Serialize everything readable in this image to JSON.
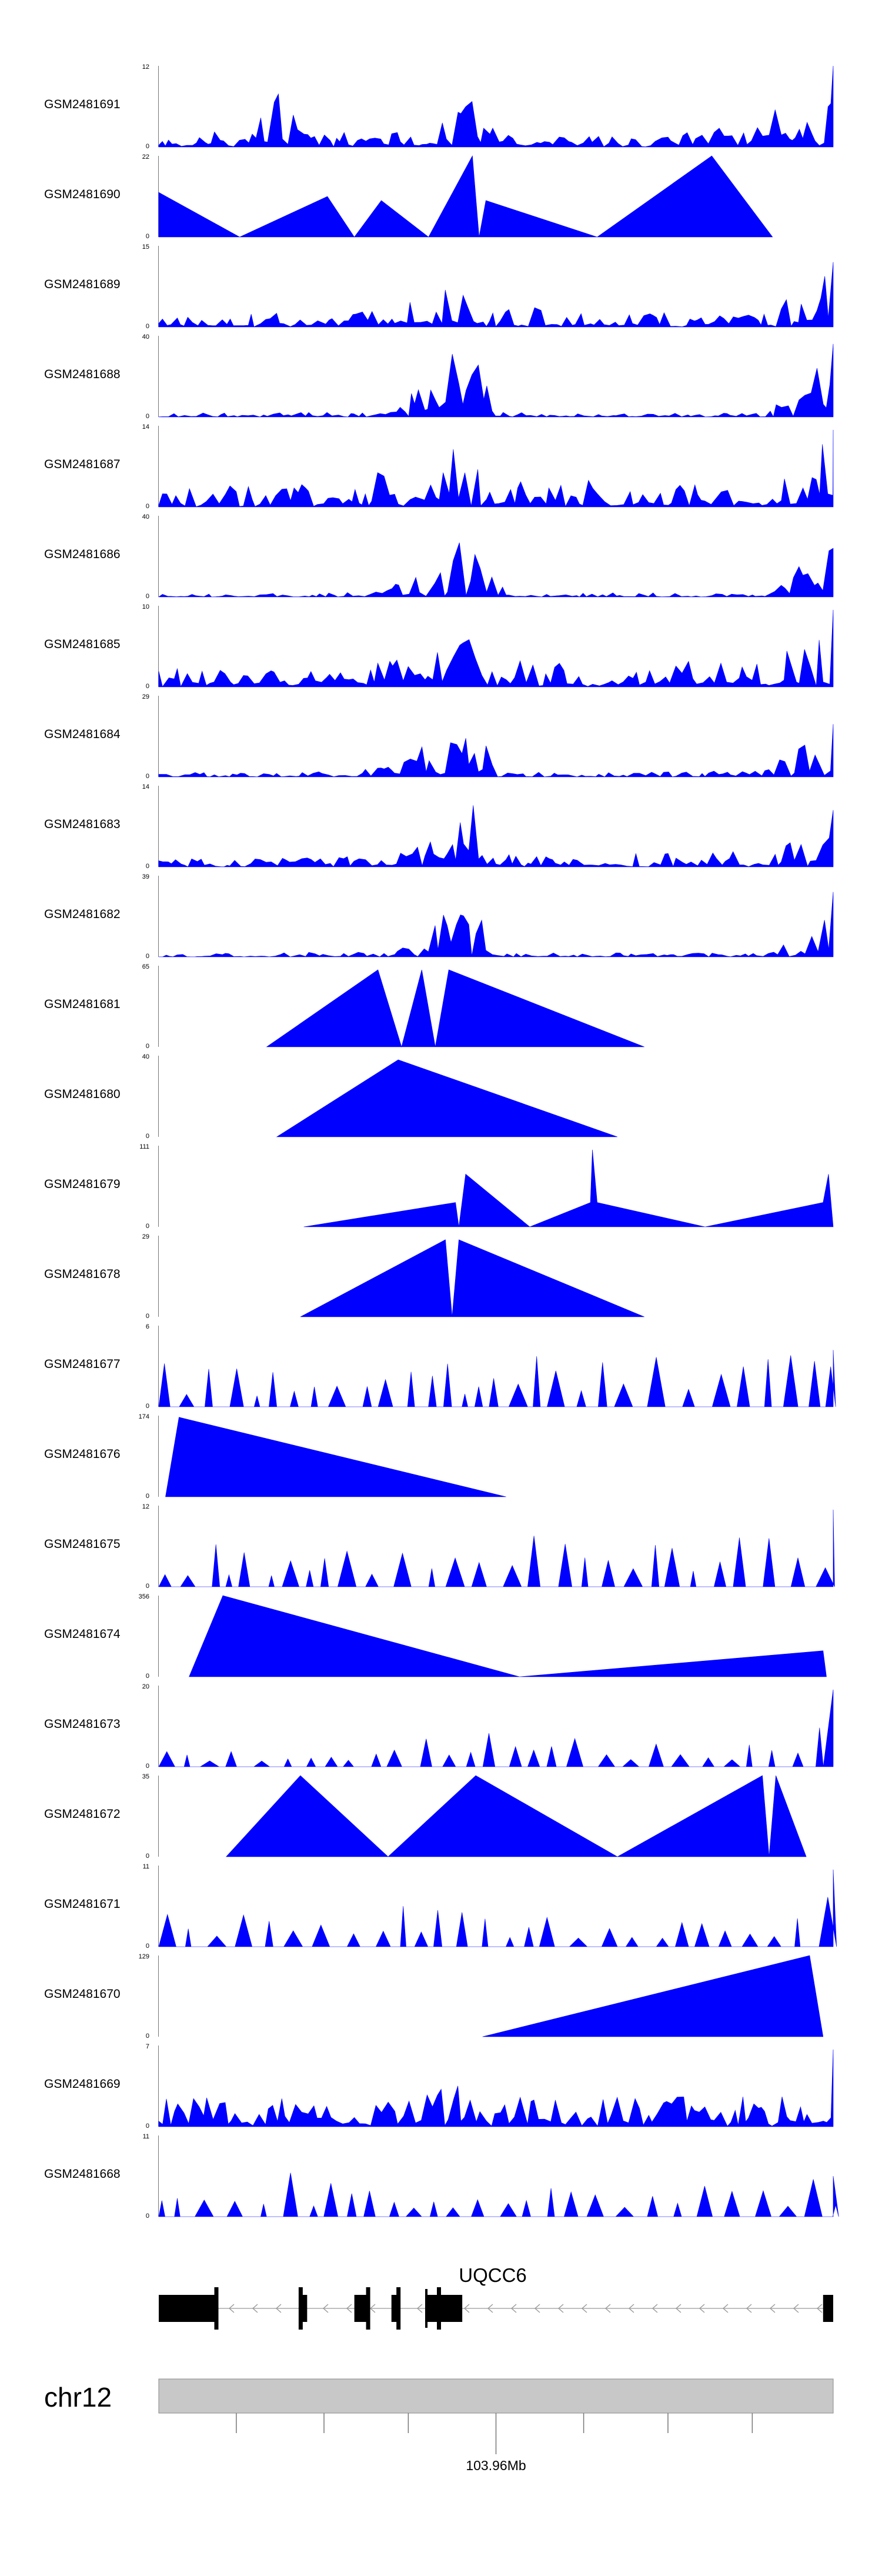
{
  "chart_data": {
    "type": "area",
    "title": "",
    "series_color": "#0000ff",
    "gene": {
      "name": "UQCC6",
      "strand": "-",
      "exons": [
        [
          0.0,
          0.085
        ],
        [
          0.21,
          0.22
        ],
        [
          0.29,
          0.31
        ],
        [
          0.345,
          0.355
        ],
        [
          0.395,
          0.397
        ],
        [
          0.395,
          0.45
        ],
        [
          0.985,
          1.0
        ]
      ]
    },
    "axis": {
      "chromosome": "chr12",
      "tick_label": "103.96Mb",
      "tick_positions": [
        0.115,
        0.245,
        0.37,
        0.5,
        0.63,
        0.755,
        0.88
      ],
      "labeled_tick_index": 3
    },
    "tracks": [
      {
        "name": "GSM2481691",
        "ymax": 12,
        "ymin": 0,
        "kind": "dense",
        "seed": 11,
        "profile": [
          [
            0.0,
            0.1
          ],
          [
            0.12,
            0.25
          ],
          [
            0.13,
            0.55
          ],
          [
            0.17,
            0.75
          ],
          [
            0.22,
            0.25
          ],
          [
            0.28,
            0.2
          ],
          [
            0.33,
            0.15
          ],
          [
            0.4,
            0.25
          ],
          [
            0.45,
            0.8
          ],
          [
            0.462,
            1.0
          ],
          [
            0.47,
            0.3
          ],
          [
            0.55,
            0.15
          ],
          [
            0.7,
            0.15
          ],
          [
            0.84,
            0.25
          ],
          [
            0.9,
            0.45
          ],
          [
            0.96,
            0.7
          ],
          [
            0.995,
            1.0
          ]
        ]
      },
      {
        "name": "GSM2481690",
        "ymax": 22,
        "ymin": 0,
        "kind": "poly",
        "points": [
          [
            0.0,
            0
          ],
          [
            0.0,
            0.55
          ],
          [
            0.12,
            0
          ],
          [
            0.25,
            0.5
          ],
          [
            0.29,
            0
          ],
          [
            0.33,
            0.45
          ],
          [
            0.4,
            0
          ],
          [
            0.465,
            1.0
          ],
          [
            0.475,
            0
          ],
          [
            0.485,
            0.45
          ],
          [
            0.65,
            0
          ],
          [
            0.82,
            1.0
          ],
          [
            0.91,
            0
          ]
        ]
      },
      {
        "name": "GSM2481689",
        "ymax": 15,
        "ymin": 0,
        "kind": "dense",
        "seed": 23,
        "profile": [
          [
            0.0,
            0.15
          ],
          [
            0.3,
            0.2
          ],
          [
            0.36,
            0.45
          ],
          [
            0.42,
            0.45
          ],
          [
            0.46,
            0.55
          ],
          [
            0.5,
            0.3
          ],
          [
            0.6,
            0.2
          ],
          [
            0.9,
            0.2
          ],
          [
            0.97,
            0.6
          ],
          [
            0.99,
            1.0
          ],
          [
            1.0,
            0.8
          ]
        ]
      },
      {
        "name": "GSM2481688",
        "ymax": 40,
        "ymin": 0,
        "kind": "dense",
        "seed": 31,
        "profile": [
          [
            0.0,
            0.05
          ],
          [
            0.3,
            0.06
          ],
          [
            0.36,
            0.25
          ],
          [
            0.4,
            0.45
          ],
          [
            0.43,
            0.75
          ],
          [
            0.465,
            0.95
          ],
          [
            0.49,
            0.65
          ],
          [
            0.5,
            0.1
          ],
          [
            0.55,
            0.05
          ],
          [
            0.9,
            0.05
          ],
          [
            0.95,
            0.4
          ],
          [
            0.98,
            0.8
          ],
          [
            1.0,
            0.9
          ]
        ]
      },
      {
        "name": "GSM2481687",
        "ymax": 14,
        "ymin": 0,
        "kind": "dense",
        "seed": 47,
        "profile": [
          [
            0.0,
            0.25
          ],
          [
            0.28,
            0.3
          ],
          [
            0.33,
            0.45
          ],
          [
            0.4,
            0.35
          ],
          [
            0.44,
            0.95
          ],
          [
            0.47,
            0.7
          ],
          [
            0.5,
            0.4
          ],
          [
            0.55,
            0.3
          ],
          [
            0.7,
            0.35
          ],
          [
            0.8,
            0.3
          ],
          [
            0.92,
            0.35
          ],
          [
            0.97,
            0.7
          ],
          [
            1.0,
            0.95
          ]
        ]
      },
      {
        "name": "GSM2481686",
        "ymax": 40,
        "ymin": 0,
        "kind": "dense",
        "seed": 53,
        "profile": [
          [
            0.0,
            0.05
          ],
          [
            0.3,
            0.06
          ],
          [
            0.38,
            0.25
          ],
          [
            0.43,
            0.55
          ],
          [
            0.465,
            0.95
          ],
          [
            0.49,
            0.4
          ],
          [
            0.52,
            0.06
          ],
          [
            0.9,
            0.05
          ],
          [
            0.96,
            0.6
          ],
          [
            0.99,
            0.95
          ],
          [
            1.0,
            0.6
          ]
        ]
      },
      {
        "name": "GSM2481685",
        "ymax": 10,
        "ymin": 0,
        "kind": "dense",
        "seed": 61,
        "profile": [
          [
            0.0,
            0.25
          ],
          [
            0.25,
            0.2
          ],
          [
            0.33,
            0.35
          ],
          [
            0.4,
            0.55
          ],
          [
            0.45,
            0.85
          ],
          [
            0.48,
            0.7
          ],
          [
            0.52,
            0.35
          ],
          [
            0.6,
            0.3
          ],
          [
            0.7,
            0.3
          ],
          [
            0.9,
            0.35
          ],
          [
            0.97,
            0.6
          ],
          [
            1.0,
            0.95
          ]
        ]
      },
      {
        "name": "GSM2481684",
        "ymax": 29,
        "ymin": 0,
        "kind": "dense",
        "seed": 71,
        "profile": [
          [
            0.0,
            0.05
          ],
          [
            0.3,
            0.08
          ],
          [
            0.38,
            0.3
          ],
          [
            0.42,
            0.7
          ],
          [
            0.46,
            0.85
          ],
          [
            0.49,
            0.6
          ],
          [
            0.5,
            0.1
          ],
          [
            0.55,
            0.06
          ],
          [
            0.9,
            0.08
          ],
          [
            0.95,
            0.45
          ],
          [
            0.98,
            0.85
          ],
          [
            1.0,
            0.65
          ]
        ]
      },
      {
        "name": "GSM2481683",
        "ymax": 14,
        "ymin": 0,
        "kind": "dense",
        "seed": 83,
        "profile": [
          [
            0.0,
            0.1
          ],
          [
            0.3,
            0.15
          ],
          [
            0.36,
            0.25
          ],
          [
            0.42,
            0.45
          ],
          [
            0.45,
            0.95
          ],
          [
            0.48,
            0.6
          ],
          [
            0.5,
            0.2
          ],
          [
            0.6,
            0.15
          ],
          [
            0.9,
            0.2
          ],
          [
            0.97,
            0.5
          ],
          [
            1.0,
            0.7
          ]
        ]
      },
      {
        "name": "GSM2481682",
        "ymax": 39,
        "ymin": 0,
        "kind": "dense",
        "seed": 97,
        "profile": [
          [
            0.0,
            0.05
          ],
          [
            0.35,
            0.06
          ],
          [
            0.4,
            0.3
          ],
          [
            0.43,
            0.7
          ],
          [
            0.46,
            0.55
          ],
          [
            0.49,
            0.4
          ],
          [
            0.5,
            0.05
          ],
          [
            0.9,
            0.05
          ],
          [
            0.96,
            0.3
          ],
          [
            0.985,
            0.95
          ],
          [
            1.0,
            0.8
          ]
        ]
      },
      {
        "name": "GSM2481681",
        "ymax": 65,
        "ymin": 0,
        "kind": "poly",
        "points": [
          [
            0.16,
            0
          ],
          [
            0.325,
            0.95
          ],
          [
            0.36,
            0
          ],
          [
            0.39,
            0.95
          ],
          [
            0.41,
            0
          ],
          [
            0.43,
            0.95
          ],
          [
            0.72,
            0
          ]
        ]
      },
      {
        "name": "GSM2481680",
        "ymax": 40,
        "ymin": 0,
        "kind": "poly",
        "points": [
          [
            0.175,
            0
          ],
          [
            0.355,
            0.95
          ],
          [
            0.68,
            0
          ]
        ]
      },
      {
        "name": "GSM2481679",
        "ymax": 111,
        "ymin": 0,
        "kind": "poly",
        "points": [
          [
            0.215,
            0
          ],
          [
            0.44,
            0.3
          ],
          [
            0.445,
            0
          ],
          [
            0.455,
            0.65
          ],
          [
            0.55,
            0
          ],
          [
            0.64,
            0.3
          ],
          [
            0.643,
            0.95
          ],
          [
            0.65,
            0.3
          ],
          [
            0.81,
            0
          ],
          [
            0.985,
            0.3
          ],
          [
            0.993,
            0.65
          ],
          [
            1.0,
            0
          ]
        ]
      },
      {
        "name": "GSM2481678",
        "ymax": 29,
        "ymin": 0,
        "kind": "poly",
        "points": [
          [
            0.21,
            0
          ],
          [
            0.425,
            0.95
          ],
          [
            0.435,
            0
          ],
          [
            0.445,
            0.95
          ],
          [
            0.72,
            0
          ]
        ]
      },
      {
        "name": "GSM2481677",
        "ymax": 6,
        "ymin": 0,
        "kind": "sparse",
        "seed": 101,
        "profile": [
          [
            0.0,
            0.55
          ],
          [
            0.25,
            0.5
          ],
          [
            0.4,
            0.55
          ],
          [
            0.55,
            0.7
          ],
          [
            0.65,
            0.75
          ],
          [
            0.85,
            0.6
          ],
          [
            0.95,
            0.65
          ],
          [
            1.0,
            0.7
          ]
        ]
      },
      {
        "name": "GSM2481676",
        "ymax": 174,
        "ymin": 0,
        "kind": "poly",
        "points": [
          [
            0.01,
            0
          ],
          [
            0.03,
            0.98
          ],
          [
            0.515,
            0
          ]
        ]
      },
      {
        "name": "GSM2481675",
        "ymax": 12,
        "ymin": 0,
        "kind": "sparse",
        "seed": 113,
        "profile": [
          [
            0.0,
            0.5
          ],
          [
            0.15,
            0.55
          ],
          [
            0.4,
            0.45
          ],
          [
            0.46,
            0.8
          ],
          [
            0.6,
            0.7
          ],
          [
            0.7,
            0.85
          ],
          [
            0.9,
            0.6
          ],
          [
            0.96,
            0.8
          ],
          [
            1.0,
            0.95
          ]
        ]
      },
      {
        "name": "GSM2481674",
        "ymax": 356,
        "ymin": 0,
        "kind": "poly",
        "points": [
          [
            0.045,
            0
          ],
          [
            0.095,
            1.0
          ],
          [
            0.535,
            0
          ],
          [
            0.985,
            0.32
          ],
          [
            0.99,
            0
          ]
        ]
      },
      {
        "name": "GSM2481673",
        "ymax": 20,
        "ymin": 0,
        "kind": "sparse",
        "seed": 127,
        "profile": [
          [
            0.0,
            0.25
          ],
          [
            0.2,
            0.3
          ],
          [
            0.35,
            0.3
          ],
          [
            0.42,
            0.55
          ],
          [
            0.46,
            0.7
          ],
          [
            0.5,
            0.4
          ],
          [
            0.6,
            0.35
          ],
          [
            0.9,
            0.3
          ],
          [
            0.97,
            0.6
          ],
          [
            1.0,
            0.95
          ]
        ]
      },
      {
        "name": "GSM2481672",
        "ymax": 35,
        "ymin": 0,
        "kind": "poly",
        "points": [
          [
            0.1,
            0
          ],
          [
            0.21,
            1.0
          ],
          [
            0.34,
            0
          ],
          [
            0.47,
            1.0
          ],
          [
            0.68,
            0
          ],
          [
            0.895,
            1.0
          ],
          [
            0.905,
            0
          ],
          [
            0.915,
            1.0
          ],
          [
            0.96,
            0
          ]
        ]
      },
      {
        "name": "GSM2481671",
        "ymax": 11,
        "ymin": 0,
        "kind": "sparse",
        "seed": 139,
        "profile": [
          [
            0.0,
            0.4
          ],
          [
            0.2,
            0.45
          ],
          [
            0.33,
            0.55
          ],
          [
            0.45,
            0.5
          ],
          [
            0.6,
            0.4
          ],
          [
            0.8,
            0.4
          ],
          [
            0.95,
            0.45
          ],
          [
            1.0,
            0.95
          ]
        ]
      },
      {
        "name": "GSM2481670",
        "ymax": 129,
        "ymin": 0,
        "kind": "poly",
        "points": [
          [
            0.48,
            0
          ],
          [
            0.965,
            1.0
          ],
          [
            0.985,
            0
          ]
        ]
      },
      {
        "name": "GSM2481669",
        "ymax": 7,
        "ymin": 0,
        "kind": "dense",
        "seed": 151,
        "profile": [
          [
            0.0,
            0.35
          ],
          [
            0.4,
            0.4
          ],
          [
            0.44,
            0.55
          ],
          [
            0.48,
            0.4
          ],
          [
            0.6,
            0.35
          ],
          [
            0.9,
            0.4
          ],
          [
            0.98,
            0.55
          ],
          [
            1.0,
            0.95
          ]
        ]
      },
      {
        "name": "GSM2481668",
        "ymax": 11,
        "ymin": 0,
        "kind": "sparse",
        "seed": 163,
        "profile": [
          [
            0.0,
            0.45
          ],
          [
            0.18,
            0.5
          ],
          [
            0.19,
            0.95
          ],
          [
            0.22,
            0.45
          ],
          [
            0.5,
            0.4
          ],
          [
            0.7,
            0.45
          ],
          [
            1.0,
            0.5
          ]
        ]
      }
    ]
  }
}
